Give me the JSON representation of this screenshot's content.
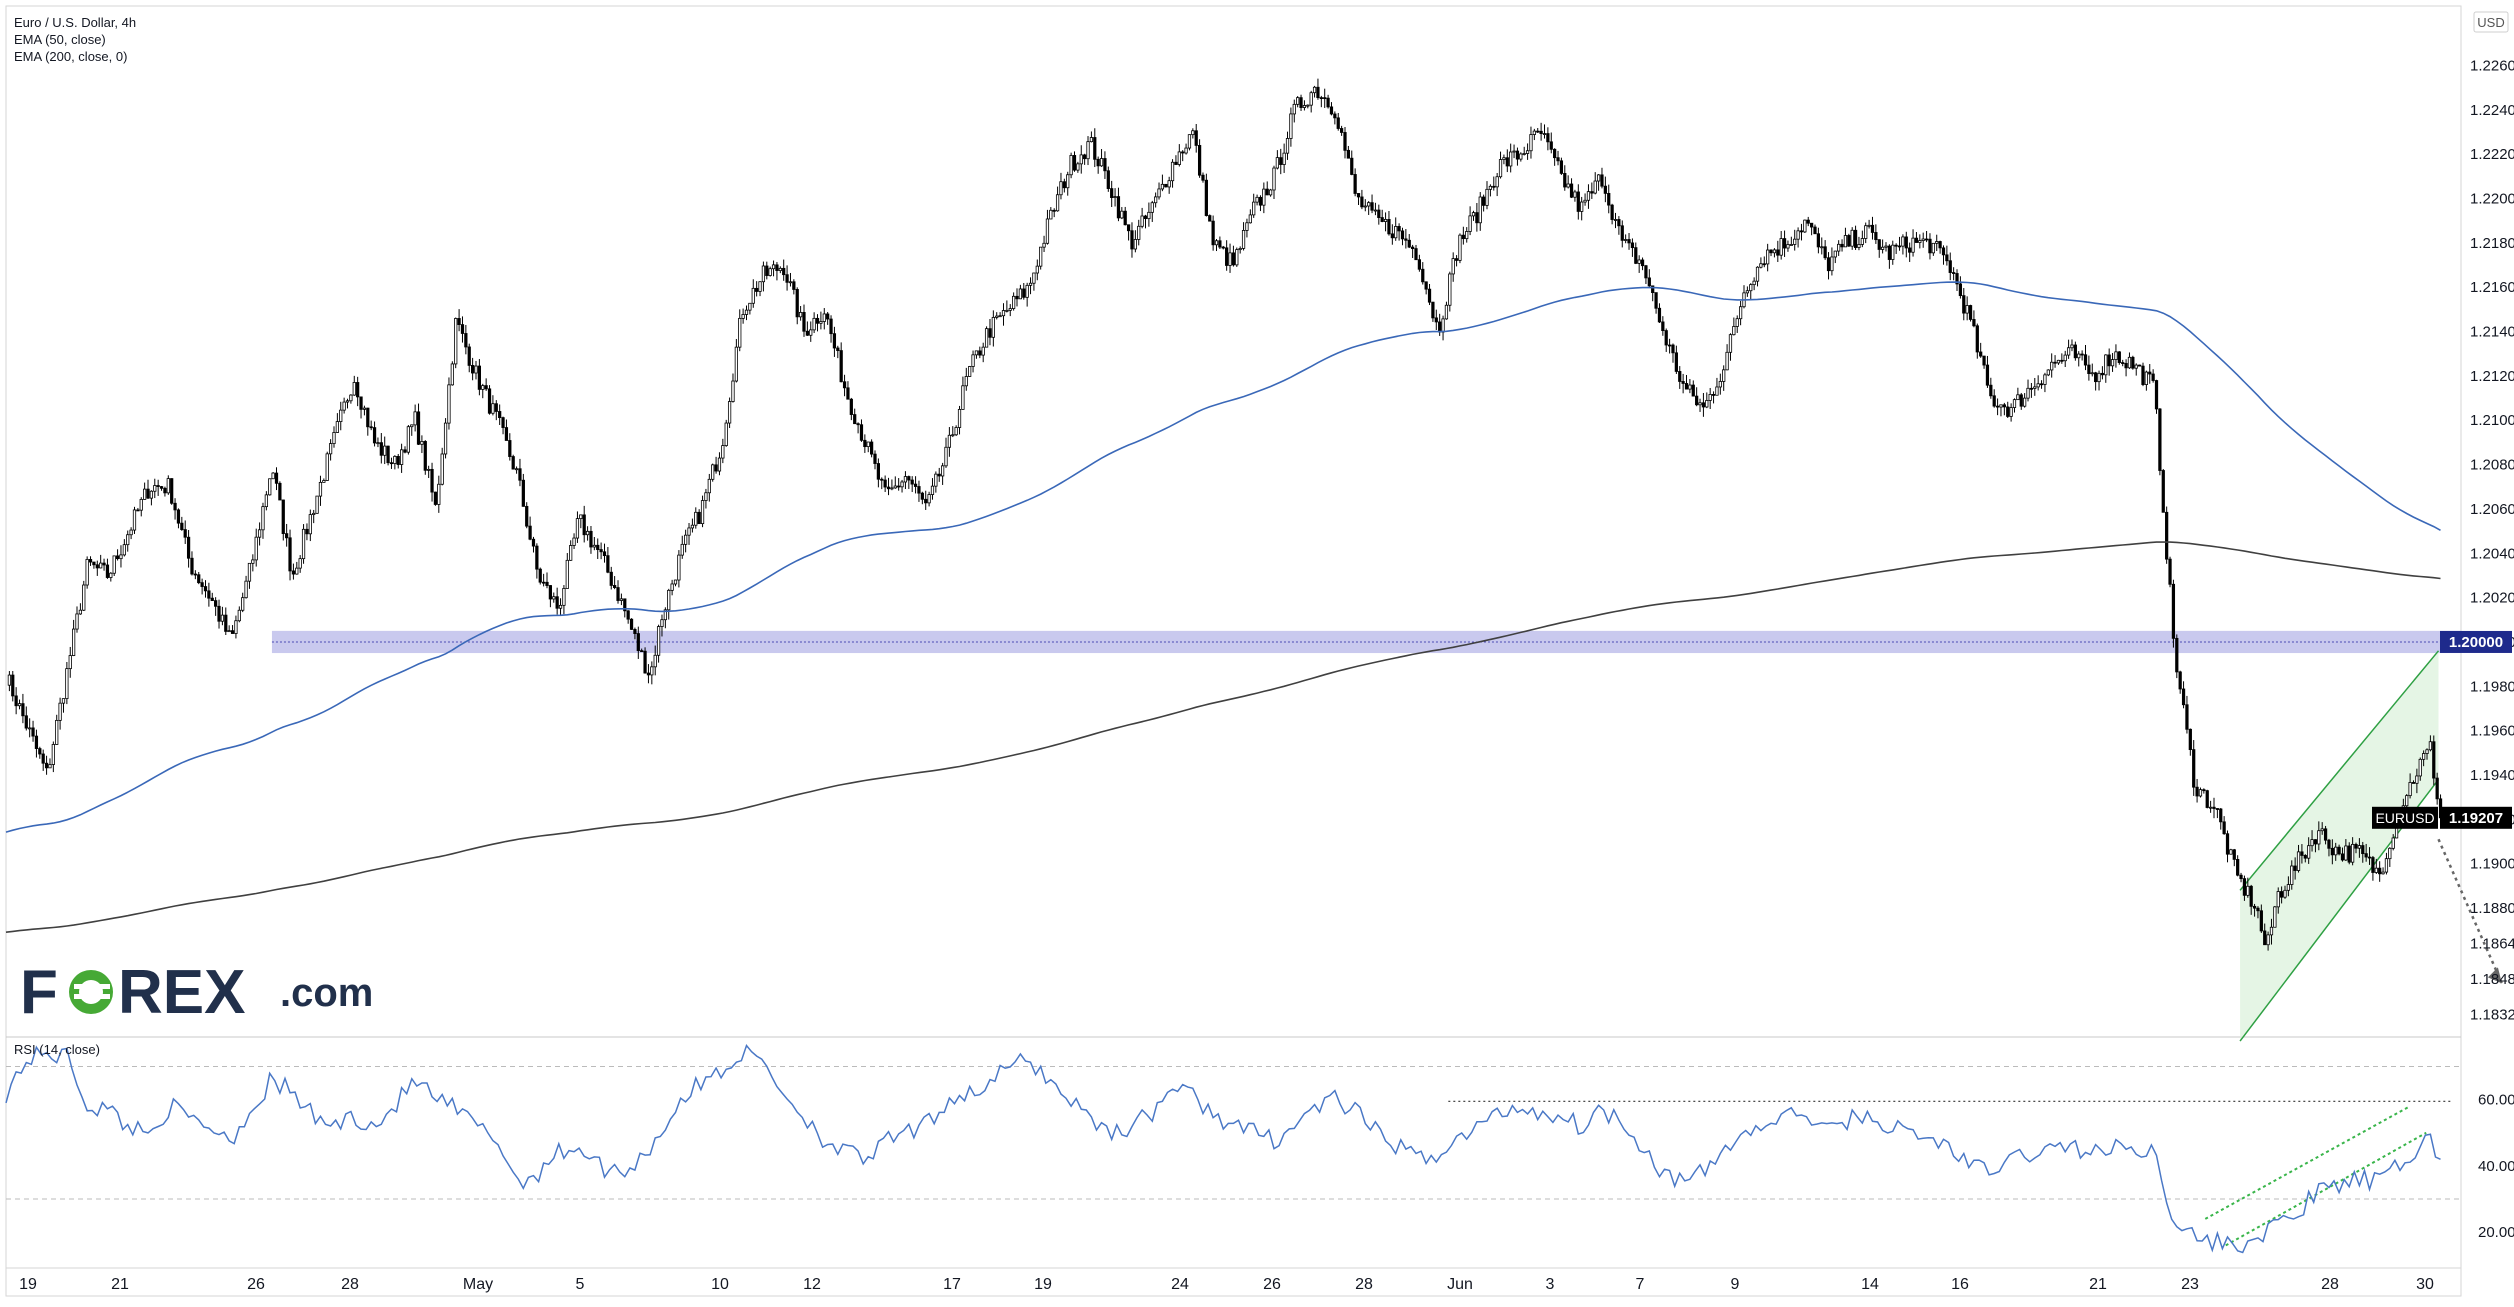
{
  "legend": {
    "title": "Euro / U.S. Dollar, 4h",
    "lines": [
      "EMA (50, close)",
      "EMA (200, close, 0)"
    ]
  },
  "currency_label": "USD",
  "logo": {
    "text": "FOREX.com"
  },
  "price_labels": {
    "level_1_2": {
      "text": "1.20000",
      "color": "#1e2a8c"
    },
    "last": {
      "symbol": "EURUSD",
      "value": "1.19207",
      "color": "#000000"
    }
  },
  "colors": {
    "ema50": "#3a68b8",
    "ema200": "#404040",
    "rsi": "#4a78c6",
    "zone": "#9c9ce0",
    "channel": "#2ea043",
    "channel_fill": "#dcf1dc",
    "candle_up": "#ffffff",
    "candle_down": "#000000",
    "logo_dark": "#21304b",
    "logo_green": "#46a935"
  },
  "chart_data": [
    {
      "type": "candlestick",
      "title": "Euro / U.S. Dollar, 4h",
      "indicators": [
        "EMA (50, close)",
        "EMA (200, close, 0)"
      ],
      "y_ticks": [
        "1.22600",
        "1.22400",
        "1.22200",
        "1.22000",
        "1.21800",
        "1.21600",
        "1.21400",
        "1.21200",
        "1.21000",
        "1.20800",
        "1.20600",
        "1.20400",
        "1.20200",
        "1.20000",
        "1.19800",
        "1.19600",
        "1.19400",
        "1.19200",
        "1.19000",
        "1.18800",
        "1.18640",
        "1.18480",
        "1.18320"
      ],
      "x_ticks": [
        "19",
        "21",
        "26",
        "28",
        "May",
        "5",
        "10",
        "12",
        "17",
        "19",
        "24",
        "26",
        "28",
        "Jun",
        "3",
        "7",
        "9",
        "14",
        "16",
        "21",
        "23",
        "28",
        "30"
      ],
      "ylim": [
        1.1825,
        1.2285
      ],
      "last_price": 1.19207,
      "horizontal_zone": {
        "center": 1.2,
        "low": 1.1995,
        "high": 1.2005
      },
      "close_path": [
        [
          0,
          1.1985
        ],
        [
          2,
          1.194
        ],
        [
          4,
          1.2035
        ],
        [
          5,
          1.203
        ],
        [
          7,
          1.207
        ],
        [
          8,
          1.207
        ],
        [
          9,
          1.2035
        ],
        [
          10,
          1.202
        ],
        [
          11,
          1.2
        ],
        [
          12,
          1.2035
        ],
        [
          13,
          1.208
        ],
        [
          14,
          1.203
        ],
        [
          16,
          1.209
        ],
        [
          17,
          1.212
        ],
        [
          18,
          1.209
        ],
        [
          19,
          1.208
        ],
        [
          20,
          1.21
        ],
        [
          21,
          1.206
        ],
        [
          22,
          1.2145
        ],
        [
          23,
          1.212
        ],
        [
          24,
          1.21
        ],
        [
          25,
          1.2075
        ],
        [
          26,
          1.203
        ],
        [
          27,
          1.2015
        ],
        [
          28,
          1.2055
        ],
        [
          29,
          1.204
        ],
        [
          30,
          1.202
        ],
        [
          31,
          1.1995
        ],
        [
          31.5,
          1.1985
        ],
        [
          32,
          1.201
        ],
        [
          33,
          1.204
        ],
        [
          34,
          1.206
        ],
        [
          35,
          1.209
        ],
        [
          36,
          1.215
        ],
        [
          37,
          1.2165
        ],
        [
          38,
          1.217
        ],
        [
          39,
          1.214
        ],
        [
          40,
          1.215
        ],
        [
          41,
          1.2115
        ],
        [
          42,
          1.209
        ],
        [
          43,
          1.2065
        ],
        [
          44,
          1.2075
        ],
        [
          45,
          1.206
        ],
        [
          46,
          1.2085
        ],
        [
          47,
          1.212
        ],
        [
          48,
          1.214
        ],
        [
          49,
          1.215
        ],
        [
          50,
          1.216
        ],
        [
          51,
          1.219
        ],
        [
          52,
          1.2215
        ],
        [
          53,
          1.2225
        ],
        [
          54,
          1.2205
        ],
        [
          55,
          1.218
        ],
        [
          56,
          1.2195
        ],
        [
          57,
          1.2215
        ],
        [
          58,
          1.223
        ],
        [
          59,
          1.218
        ],
        [
          60,
          1.217
        ],
        [
          61,
          1.2195
        ],
        [
          62,
          1.221
        ],
        [
          63,
          1.224
        ],
        [
          64,
          1.225
        ],
        [
          65,
          1.224
        ],
        [
          66,
          1.22
        ],
        [
          67,
          1.219
        ],
        [
          68,
          1.2185
        ],
        [
          69,
          1.2175
        ],
        [
          70,
          1.214
        ],
        [
          71,
          1.218
        ],
        [
          72,
          1.2195
        ],
        [
          73,
          1.2215
        ],
        [
          74,
          1.222
        ],
        [
          75,
          1.223
        ],
        [
          76,
          1.221
        ],
        [
          77,
          1.2195
        ],
        [
          78,
          1.221
        ],
        [
          79,
          1.218
        ],
        [
          80,
          1.217
        ],
        [
          81,
          1.214
        ],
        [
          82,
          1.2115
        ],
        [
          83,
          1.2105
        ],
        [
          84,
          1.2125
        ],
        [
          85,
          1.216
        ],
        [
          86,
          1.2175
        ],
        [
          87,
          1.218
        ],
        [
          88,
          1.219
        ],
        [
          89,
          1.217
        ],
        [
          90,
          1.218
        ],
        [
          91,
          1.2185
        ],
        [
          92,
          1.2175
        ],
        [
          93,
          1.218
        ],
        [
          94,
          1.218
        ],
        [
          95,
          1.217
        ],
        [
          96,
          1.2145
        ],
        [
          97,
          1.211
        ],
        [
          98,
          1.2105
        ],
        [
          99,
          1.2115
        ],
        [
          100,
          1.2125
        ],
        [
          101,
          1.213
        ],
        [
          102,
          1.212
        ],
        [
          103,
          1.213
        ],
        [
          104,
          1.2125
        ],
        [
          105,
          1.2115
        ],
        [
          106,
          1.1995
        ],
        [
          107,
          1.1935
        ],
        [
          108,
          1.1925
        ],
        [
          109,
          1.1895
        ],
        [
          110,
          1.188
        ],
        [
          110.5,
          1.186
        ],
        [
          111,
          1.1885
        ],
        [
          112,
          1.19
        ],
        [
          113,
          1.1915
        ],
        [
          114,
          1.1905
        ],
        [
          115,
          1.1905
        ],
        [
          116,
          1.1895
        ],
        [
          117,
          1.1925
        ],
        [
          118,
          1.1945
        ],
        [
          118.5,
          1.1952
        ],
        [
          119,
          1.1921
        ]
      ]
    },
    {
      "type": "line",
      "title": "RSI (14, close)",
      "y_ticks": [
        "60.00",
        "40.00",
        "20.00"
      ],
      "ylim": [
        11,
        78
      ],
      "reference_lines": [
        70,
        30
      ],
      "resistance_level": 59.5,
      "values": [
        [
          0,
          62
        ],
        [
          1,
          72
        ],
        [
          2,
          74
        ],
        [
          3,
          73
        ],
        [
          4,
          58
        ],
        [
          5,
          57
        ],
        [
          6,
          52
        ],
        [
          7,
          50
        ],
        [
          8,
          58
        ],
        [
          9,
          54
        ],
        [
          10,
          52
        ],
        [
          11,
          48
        ],
        [
          12,
          57
        ],
        [
          13,
          66
        ],
        [
          14,
          62
        ],
        [
          15,
          55
        ],
        [
          16,
          52
        ],
        [
          17,
          55
        ],
        [
          18,
          52
        ],
        [
          19,
          58
        ],
        [
          20,
          66
        ],
        [
          21,
          60
        ],
        [
          22,
          57
        ],
        [
          23,
          52
        ],
        [
          24,
          48
        ],
        [
          25,
          35
        ],
        [
          26,
          38
        ],
        [
          27,
          44
        ],
        [
          28,
          46
        ],
        [
          29,
          40
        ],
        [
          30,
          38
        ],
        [
          31,
          42
        ],
        [
          32,
          50
        ],
        [
          33,
          60
        ],
        [
          34,
          65
        ],
        [
          35,
          69
        ],
        [
          36,
          74
        ],
        [
          37,
          72
        ],
        [
          38,
          62
        ],
        [
          39,
          55
        ],
        [
          40,
          48
        ],
        [
          41,
          44
        ],
        [
          42,
          42
        ],
        [
          43,
          47
        ],
        [
          44,
          50
        ],
        [
          45,
          52
        ],
        [
          46,
          60
        ],
        [
          47,
          62
        ],
        [
          48,
          64
        ],
        [
          49,
          70
        ],
        [
          50,
          72
        ],
        [
          51,
          66
        ],
        [
          52,
          60
        ],
        [
          53,
          55
        ],
        [
          54,
          50
        ],
        [
          55,
          52
        ],
        [
          56,
          56
        ],
        [
          57,
          64
        ],
        [
          58,
          61
        ],
        [
          59,
          56
        ],
        [
          60,
          52
        ],
        [
          61,
          50
        ],
        [
          62,
          48
        ],
        [
          63,
          52
        ],
        [
          64,
          58
        ],
        [
          65,
          60
        ],
        [
          66,
          56
        ],
        [
          67,
          50
        ],
        [
          68,
          46
        ],
        [
          69,
          42
        ],
        [
          70,
          44
        ],
        [
          71,
          48
        ],
        [
          72,
          52
        ],
        [
          73,
          56
        ],
        [
          74,
          58
        ],
        [
          75,
          56
        ],
        [
          76,
          55
        ],
        [
          77,
          52
        ],
        [
          78,
          57
        ],
        [
          79,
          54
        ],
        [
          80,
          46
        ],
        [
          81,
          38
        ],
        [
          82,
          35
        ],
        [
          83,
          38
        ],
        [
          84,
          45
        ],
        [
          85,
          50
        ],
        [
          86,
          52
        ],
        [
          87,
          55
        ],
        [
          88,
          56
        ],
        [
          89,
          50
        ],
        [
          90,
          54
        ],
        [
          91,
          55
        ],
        [
          92,
          52
        ],
        [
          93,
          50
        ],
        [
          94,
          48
        ],
        [
          95,
          46
        ],
        [
          96,
          40
        ],
        [
          97,
          38
        ],
        [
          98,
          42
        ],
        [
          99,
          44
        ],
        [
          100,
          45
        ],
        [
          101,
          46
        ],
        [
          102,
          44
        ],
        [
          103,
          45
        ],
        [
          104,
          46
        ],
        [
          105,
          44
        ],
        [
          106,
          24
        ],
        [
          107,
          18
        ],
        [
          108,
          17
        ],
        [
          109,
          16
        ],
        [
          110,
          18
        ],
        [
          111,
          22
        ],
        [
          112,
          26
        ],
        [
          113,
          32
        ],
        [
          114,
          34
        ],
        [
          115,
          36
        ],
        [
          116,
          35
        ],
        [
          117,
          40
        ],
        [
          118,
          46
        ],
        [
          118.5,
          48
        ],
        [
          119,
          42
        ]
      ]
    }
  ]
}
